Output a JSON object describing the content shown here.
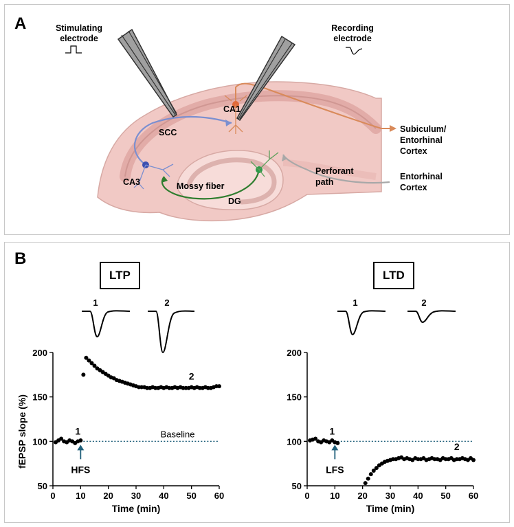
{
  "panel_a": {
    "label": "A",
    "stim_label_1": "Stimulating",
    "stim_label_2": "electrode",
    "rec_label_1": "Recording",
    "rec_label_2": "electrode",
    "ca1": "CA1",
    "scc": "SCC",
    "ca3": "CA3",
    "mossy": "Mossy fiber",
    "dg": "DG",
    "perforant_1": "Perforant",
    "perforant_2": "path",
    "subiculum_1": "Subiculum/",
    "subiculum_2": "Entorhinal",
    "subiculum_3": "Cortex",
    "entorhinal_1": "Entorhinal",
    "entorhinal_2": "Cortex",
    "colors": {
      "schaffer": "#7b8fd0",
      "ca1_axon": "#d98a5a",
      "mossy": "#2e7d2e",
      "perforant": "#a8a8a8",
      "tissue": "#f1c9c5"
    }
  },
  "panel_b": {
    "label": "B",
    "ltp_box": "LTP",
    "ltd_box": "LTD",
    "trace_1": "1",
    "trace_2": "2",
    "ylabel": "fEPSP slope  (%)",
    "xlabel": "Time (min)",
    "baseline_label": "Baseline",
    "hfs": "HFS",
    "lfs": "LFS",
    "marker_1": "1",
    "marker_2": "2"
  },
  "chart_data": [
    {
      "type": "scatter",
      "name": "LTP",
      "xlabel": "Time (min)",
      "ylabel": "fEPSP slope  (%)",
      "xlim": [
        0,
        60
      ],
      "ylim": [
        50,
        200
      ],
      "xticks": [
        0,
        10,
        20,
        30,
        40,
        50,
        60
      ],
      "yticks": [
        50,
        100,
        150,
        200
      ],
      "baseline": 100,
      "stimulus": {
        "label": "HFS",
        "x": 10
      },
      "x": [
        1,
        2,
        3,
        4,
        5,
        6,
        7,
        8,
        9,
        10,
        11,
        12,
        13,
        14,
        15,
        16,
        17,
        18,
        19,
        20,
        21,
        22,
        23,
        24,
        25,
        26,
        27,
        28,
        29,
        30,
        31,
        32,
        33,
        34,
        35,
        36,
        37,
        38,
        39,
        40,
        41,
        42,
        43,
        44,
        45,
        46,
        47,
        48,
        49,
        50,
        51,
        52,
        53,
        54,
        55,
        56,
        57,
        58,
        59,
        60
      ],
      "y": [
        99,
        101,
        103,
        100,
        99,
        101,
        100,
        98,
        100,
        101,
        175,
        194,
        191,
        188,
        185,
        182,
        180,
        178,
        176,
        174,
        172,
        171,
        169,
        168,
        167,
        166,
        165,
        164,
        163,
        162,
        161,
        161,
        161,
        160,
        160,
        161,
        160,
        160,
        161,
        160,
        161,
        160,
        160,
        161,
        160,
        161,
        160,
        160,
        160,
        161,
        160,
        161,
        160,
        160,
        161,
        160,
        160,
        161,
        162,
        162
      ]
    },
    {
      "type": "scatter",
      "name": "LTD",
      "xlabel": "Time (min)",
      "ylabel": "",
      "xlim": [
        0,
        60
      ],
      "ylim": [
        50,
        200
      ],
      "xticks": [
        0,
        10,
        20,
        30,
        40,
        50,
        60
      ],
      "yticks": [
        50,
        100,
        150,
        200
      ],
      "baseline": 100,
      "stimulus": {
        "label": "LFS",
        "x": 10
      },
      "x": [
        1,
        2,
        3,
        4,
        5,
        6,
        7,
        8,
        9,
        10,
        11,
        21,
        22,
        23,
        24,
        25,
        26,
        27,
        28,
        29,
        30,
        31,
        32,
        33,
        34,
        35,
        36,
        37,
        38,
        39,
        40,
        41,
        42,
        43,
        44,
        45,
        46,
        47,
        48,
        49,
        50,
        51,
        52,
        53,
        54,
        55,
        56,
        57,
        58,
        59,
        60
      ],
      "y": [
        101,
        102,
        103,
        100,
        99,
        101,
        100,
        99,
        101,
        99,
        98,
        53,
        58,
        63,
        67,
        70,
        73,
        75,
        77,
        78,
        79,
        80,
        80,
        81,
        82,
        80,
        81,
        80,
        79,
        81,
        80,
        80,
        81,
        79,
        80,
        81,
        80,
        80,
        79,
        81,
        80,
        80,
        81,
        79,
        80,
        80,
        81,
        80,
        79,
        81,
        79
      ]
    }
  ]
}
